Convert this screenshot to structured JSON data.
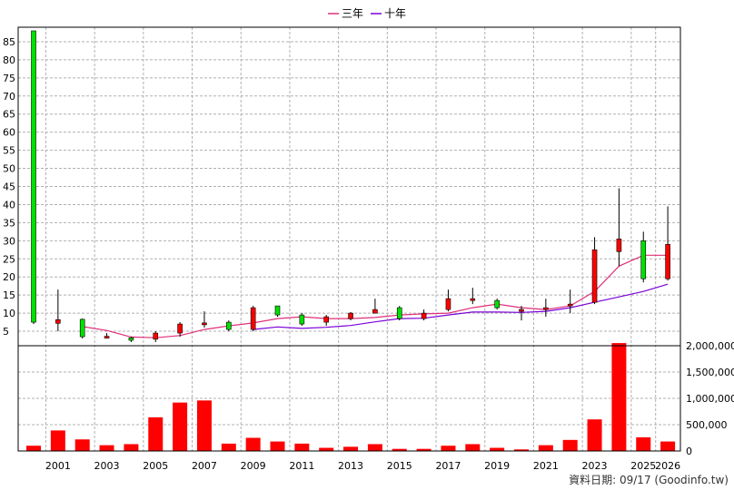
{
  "chart_data": {
    "type": "candlestick",
    "legend": [
      {
        "name": "三年",
        "color": "#e0307a"
      },
      {
        "name": "十年",
        "color": "#7a00d8"
      }
    ],
    "price_axis": {
      "ylim": [
        1,
        89
      ],
      "ticks": [
        5,
        10,
        15,
        20,
        25,
        30,
        35,
        40,
        45,
        50,
        55,
        60,
        65,
        70,
        75,
        80,
        85
      ]
    },
    "volume_axis": {
      "ylim": [
        0,
        2000000
      ],
      "ticks": [
        0,
        500000,
        1000000,
        1500000,
        2000000
      ],
      "tick_labels": [
        "0",
        "500,000",
        "1,000,000",
        "1,500,000",
        "2,000,000"
      ]
    },
    "x_tick_labels": [
      "2001",
      "2003",
      "2005",
      "2007",
      "2009",
      "2011",
      "2013",
      "2015",
      "2017",
      "2019",
      "2021",
      "2023",
      "2025",
      "2026"
    ],
    "candles": [
      {
        "year": 2000,
        "open": 7.5,
        "high": 88,
        "low": 7,
        "close": 88,
        "up": true
      },
      {
        "year": 2001,
        "open": 8.2,
        "high": 16.5,
        "low": 5,
        "close": 7.2,
        "up": false
      },
      {
        "year": 2002,
        "open": 3.5,
        "high": 8.5,
        "low": 3,
        "close": 8.3,
        "up": true
      },
      {
        "year": 2003,
        "open": 3.6,
        "high": 4.5,
        "low": 3,
        "close": 3.4,
        "up": false
      },
      {
        "year": 2004,
        "open": 2.5,
        "high": 3.5,
        "low": 2,
        "close": 3.2,
        "up": true
      },
      {
        "year": 2005,
        "open": 4.5,
        "high": 5,
        "low": 2,
        "close": 2.8,
        "up": false
      },
      {
        "year": 2006,
        "open": 7,
        "high": 7.5,
        "low": 3.5,
        "close": 4.5,
        "up": false
      },
      {
        "year": 2007,
        "open": 7.3,
        "high": 10.5,
        "low": 6,
        "close": 7,
        "up": false
      },
      {
        "year": 2008,
        "open": 5.5,
        "high": 8,
        "low": 5,
        "close": 7.5,
        "up": true
      },
      {
        "year": 2009,
        "open": 11.5,
        "high": 12,
        "low": 5,
        "close": 5.5,
        "up": false
      },
      {
        "year": 2010,
        "open": 9.5,
        "high": 12,
        "low": 9,
        "close": 12,
        "up": true
      },
      {
        "year": 2011,
        "open": 7,
        "high": 10,
        "low": 6.5,
        "close": 9.5,
        "up": true
      },
      {
        "year": 2012,
        "open": 9,
        "high": 9.5,
        "low": 6.5,
        "close": 7.5,
        "up": false
      },
      {
        "year": 2013,
        "open": 10,
        "high": 10.3,
        "low": 8,
        "close": 8.5,
        "up": false
      },
      {
        "year": 2014,
        "open": 11,
        "high": 14,
        "low": 10,
        "close": 10,
        "up": false
      },
      {
        "year": 2015,
        "open": 8.5,
        "high": 12,
        "low": 8,
        "close": 11.5,
        "up": true
      },
      {
        "year": 2016,
        "open": 10,
        "high": 11,
        "low": 8,
        "close": 8.5,
        "up": false
      },
      {
        "year": 2017,
        "open": 14,
        "high": 16.5,
        "low": 10.5,
        "close": 11,
        "up": false
      },
      {
        "year": 2018,
        "open": 14,
        "high": 17,
        "low": 12.5,
        "close": 13.5,
        "up": false
      },
      {
        "year": 2019,
        "open": 11.5,
        "high": 14,
        "low": 11,
        "close": 13.5,
        "up": true
      },
      {
        "year": 2020,
        "open": 11,
        "high": 12,
        "low": 8,
        "close": 11,
        "up": false
      },
      {
        "year": 2021,
        "open": 11,
        "high": 14,
        "low": 9,
        "close": 11.5,
        "up": false
      },
      {
        "year": 2022,
        "open": 12,
        "high": 16.5,
        "low": 10,
        "close": 12.5,
        "up": false
      },
      {
        "year": 2023,
        "open": 27.5,
        "high": 31,
        "low": 12.5,
        "close": 13,
        "up": false
      },
      {
        "year": 2024,
        "open": 30.5,
        "high": 44.5,
        "low": 23,
        "close": 27,
        "up": false
      },
      {
        "year": 2025,
        "open": 19.5,
        "high": 32.5,
        "low": 18.5,
        "close": 30,
        "up": true
      },
      {
        "year": 2026,
        "open": 29,
        "high": 39.5,
        "low": 19,
        "close": 19.5,
        "up": false
      }
    ],
    "series": [
      {
        "name": "三年",
        "points": [
          [
            2002,
            6.3
          ],
          [
            2003,
            5.2
          ],
          [
            2004,
            3.4
          ],
          [
            2005,
            3.2
          ],
          [
            2006,
            3.8
          ],
          [
            2007,
            5.5
          ],
          [
            2008,
            6.5
          ],
          [
            2009,
            7.3
          ],
          [
            2010,
            8.5
          ],
          [
            2011,
            9
          ],
          [
            2012,
            8.5
          ],
          [
            2013,
            8.5
          ],
          [
            2014,
            8.8
          ],
          [
            2015,
            9.5
          ],
          [
            2016,
            9.8
          ],
          [
            2017,
            10
          ],
          [
            2018,
            11.5
          ],
          [
            2019,
            12.5
          ],
          [
            2020,
            11.5
          ],
          [
            2021,
            11
          ],
          [
            2022,
            12
          ],
          [
            2023,
            16
          ],
          [
            2024,
            23
          ],
          [
            2025,
            26
          ],
          [
            2026,
            26
          ]
        ]
      },
      {
        "name": "十年",
        "points": [
          [
            2009,
            5.5
          ],
          [
            2010,
            6.2
          ],
          [
            2011,
            5.8
          ],
          [
            2012,
            6.1
          ],
          [
            2013,
            6.6
          ],
          [
            2014,
            7.6
          ],
          [
            2015,
            8.5
          ],
          [
            2016,
            8.6
          ],
          [
            2017,
            9.5
          ],
          [
            2018,
            10.3
          ],
          [
            2019,
            10.3
          ],
          [
            2020,
            10.2
          ],
          [
            2021,
            10.5
          ],
          [
            2022,
            11.5
          ],
          [
            2023,
            13
          ],
          [
            2024,
            14.5
          ],
          [
            2025,
            16
          ],
          [
            2026,
            18
          ]
        ]
      }
    ],
    "volume": [
      {
        "year": 2000,
        "value": 100000
      },
      {
        "year": 2001,
        "value": 390000
      },
      {
        "year": 2002,
        "value": 220000
      },
      {
        "year": 2003,
        "value": 110000
      },
      {
        "year": 2004,
        "value": 130000
      },
      {
        "year": 2005,
        "value": 640000
      },
      {
        "year": 2006,
        "value": 920000
      },
      {
        "year": 2007,
        "value": 960000
      },
      {
        "year": 2008,
        "value": 140000
      },
      {
        "year": 2009,
        "value": 250000
      },
      {
        "year": 2010,
        "value": 180000
      },
      {
        "year": 2011,
        "value": 140000
      },
      {
        "year": 2012,
        "value": 60000
      },
      {
        "year": 2013,
        "value": 80000
      },
      {
        "year": 2014,
        "value": 130000
      },
      {
        "year": 2015,
        "value": 40000
      },
      {
        "year": 2016,
        "value": 40000
      },
      {
        "year": 2017,
        "value": 100000
      },
      {
        "year": 2018,
        "value": 130000
      },
      {
        "year": 2019,
        "value": 60000
      },
      {
        "year": 2020,
        "value": 30000
      },
      {
        "year": 2021,
        "value": 110000
      },
      {
        "year": 2022,
        "value": 210000
      },
      {
        "year": 2023,
        "value": 600000
      },
      {
        "year": 2024,
        "value": 2050000
      },
      {
        "year": 2025,
        "value": 260000
      },
      {
        "year": 2026,
        "value": 180000
      }
    ],
    "colors": {
      "up": "#00e000",
      "down": "#ff0000",
      "volume": "#ff0000",
      "grid": "#b0b0b0"
    }
  },
  "credit": "資料日期: 09/17  (Goodinfo.tw)"
}
